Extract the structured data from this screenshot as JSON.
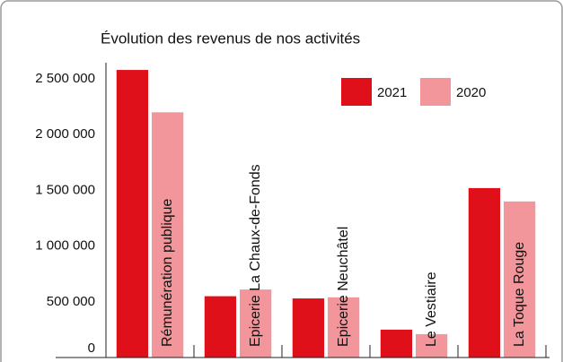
{
  "chart_data": {
    "type": "bar",
    "title": "Évolution des revenus de nos activités",
    "categories": [
      "Rémunération publique",
      "Epicerie La Chaux-de-Fonds",
      "Epicerie Neuchâtel",
      "Le Vestiaire",
      "La Toque Rouge"
    ],
    "series": [
      {
        "name": "2021",
        "color": "#e0101b",
        "values": [
          2580000,
          550000,
          530000,
          250000,
          1520000
        ]
      },
      {
        "name": "2020",
        "color": "#f2969b",
        "values": [
          2200000,
          610000,
          540000,
          210000,
          1400000
        ]
      }
    ],
    "ylim": [
      0,
      2500000
    ],
    "yticks": [
      0,
      {
        "value": 500000,
        "label": "500 000"
      },
      {
        "value": 1000000,
        "label": "1 000 000"
      },
      {
        "value": 1500000,
        "label": "1 500 000"
      },
      {
        "value": 2000000,
        "label": "2 000 000"
      },
      {
        "value": 2500000,
        "label": "2 500 000"
      }
    ],
    "legend": "top-right",
    "grid": false
  }
}
